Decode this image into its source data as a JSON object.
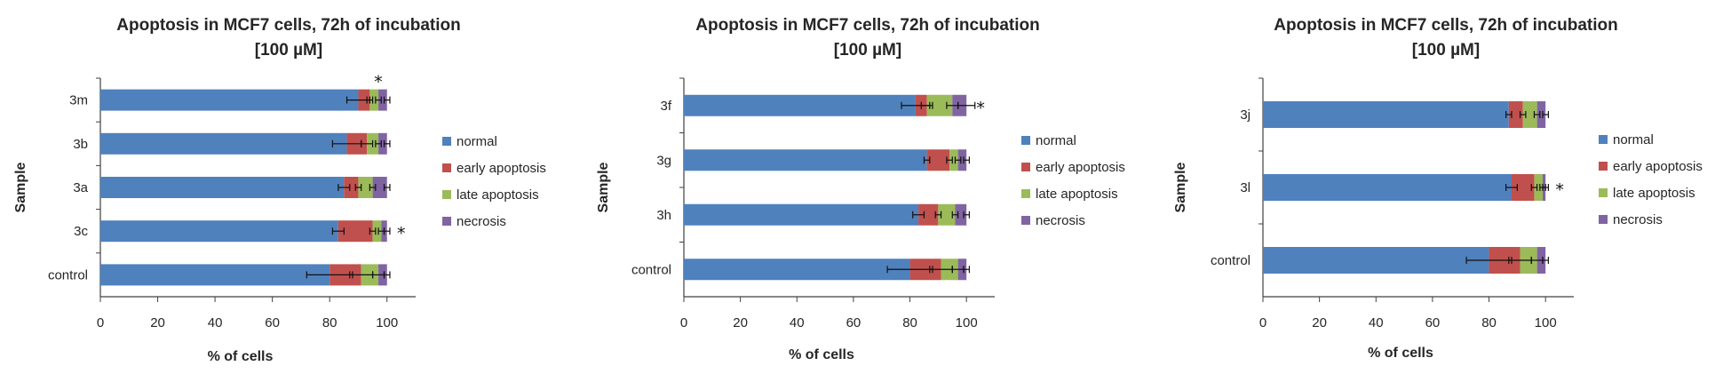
{
  "chart_data": [
    {
      "type": "bar",
      "stacked": true,
      "orientation": "horizontal",
      "title": "Apoptosis in MCF7 cells, 72h of incubation",
      "subtitle": "[100 µM]",
      "xlabel": "% of cells",
      "ylabel": "Sample",
      "xlim": [
        0,
        110
      ],
      "xticks": [
        0,
        20,
        40,
        60,
        80,
        100
      ],
      "categories": [
        "3m",
        "3b",
        "3a",
        "3c",
        "control"
      ],
      "series": [
        {
          "name": "normal",
          "color": "#4f81bd",
          "values": [
            90,
            86,
            85,
            83,
            80
          ],
          "errors": [
            4,
            5,
            2,
            2,
            8
          ]
        },
        {
          "name": "early apoptosis",
          "color": "#c0504d",
          "values": [
            4,
            7,
            5,
            12,
            11
          ],
          "errors": [
            1,
            2,
            1,
            1,
            4
          ]
        },
        {
          "name": "late apoptosis",
          "color": "#9bbb59",
          "values": [
            3,
            4,
            5,
            3,
            6
          ],
          "errors": [
            1,
            1,
            1,
            1,
            2
          ]
        },
        {
          "name": "necrosis",
          "color": "#8064a2",
          "values": [
            3,
            3,
            5,
            2,
            3
          ],
          "errors": [
            1,
            1,
            1,
            1,
            1
          ]
        }
      ],
      "significance": [
        "*",
        "",
        "",
        "*",
        ""
      ],
      "significance_position": [
        "top",
        "",
        "",
        "right",
        ""
      ]
    },
    {
      "type": "bar",
      "stacked": true,
      "orientation": "horizontal",
      "title": "Apoptosis in MCF7 cells, 72h of incubation",
      "subtitle": "[100 µM]",
      "xlabel": "% of cells",
      "ylabel": "Sample",
      "xlim": [
        0,
        110
      ],
      "xticks": [
        0,
        20,
        40,
        60,
        80,
        100
      ],
      "categories": [
        "3f",
        "3g",
        "3h",
        "control"
      ],
      "series": [
        {
          "name": "normal",
          "color": "#4f81bd",
          "values": [
            82,
            86,
            83,
            80
          ],
          "errors": [
            5,
            1,
            2,
            8
          ]
        },
        {
          "name": "early apoptosis",
          "color": "#c0504d",
          "values": [
            4,
            8,
            7,
            11
          ],
          "errors": [
            2,
            1,
            1,
            4
          ]
        },
        {
          "name": "late apoptosis",
          "color": "#9bbb59",
          "values": [
            9,
            3,
            6,
            6
          ],
          "errors": [
            2,
            1,
            1,
            2
          ]
        },
        {
          "name": "necrosis",
          "color": "#8064a2",
          "values": [
            5,
            3,
            4,
            3
          ],
          "errors": [
            3,
            1,
            1,
            1
          ]
        }
      ],
      "significance": [
        "*",
        "",
        "",
        ""
      ],
      "significance_position": [
        "right",
        "",
        "",
        ""
      ]
    },
    {
      "type": "bar",
      "stacked": true,
      "orientation": "horizontal",
      "title": "Apoptosis in MCF7 cells, 72h of incubation",
      "subtitle": "[100 µM]",
      "xlabel": "% of cells",
      "ylabel": "Sample",
      "xlim": [
        0,
        110
      ],
      "xticks": [
        0,
        20,
        40,
        60,
        80,
        100
      ],
      "categories": [
        "3j",
        "3l",
        "control"
      ],
      "series": [
        {
          "name": "normal",
          "color": "#4f81bd",
          "values": [
            87,
            88,
            80
          ],
          "errors": [
            1,
            2,
            8
          ]
        },
        {
          "name": "early apoptosis",
          "color": "#c0504d",
          "values": [
            5,
            8,
            11
          ],
          "errors": [
            1,
            1,
            4
          ]
        },
        {
          "name": "late apoptosis",
          "color": "#9bbb59",
          "values": [
            5,
            3,
            6
          ],
          "errors": [
            1,
            1,
            2
          ]
        },
        {
          "name": "necrosis",
          "color": "#8064a2",
          "values": [
            3,
            1,
            3
          ],
          "errors": [
            1,
            1,
            1
          ]
        }
      ],
      "significance": [
        "",
        "*",
        ""
      ],
      "significance_position": [
        "",
        "right",
        ""
      ]
    }
  ]
}
